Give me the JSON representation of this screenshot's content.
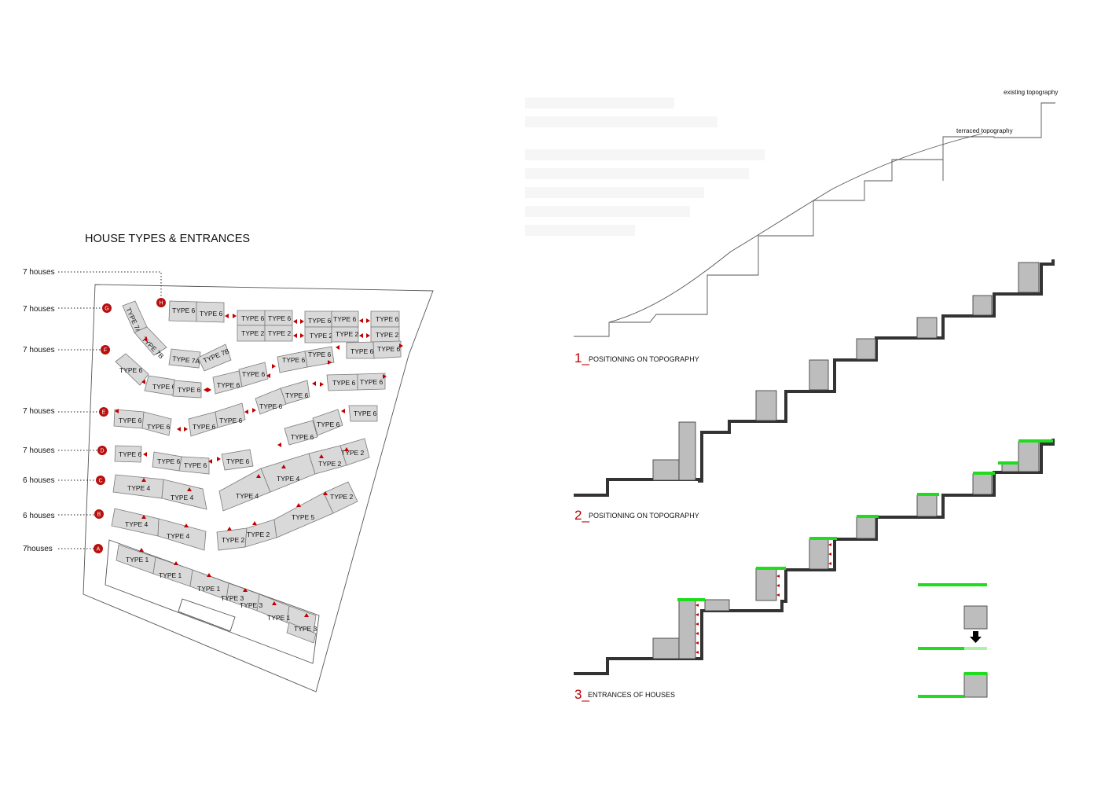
{
  "plan": {
    "title": "HOUSE TYPES & ENTRANCES",
    "row_counts": [
      {
        "label": "7 houses",
        "marker": "H"
      },
      {
        "label": "7 houses",
        "marker": "G"
      },
      {
        "label": "7 houses",
        "marker": "F"
      },
      {
        "label": "7 houses",
        "marker": "E"
      },
      {
        "label": "7 houses",
        "marker": "D"
      },
      {
        "label": "6 houses",
        "marker": "C"
      },
      {
        "label": "6 houses",
        "marker": "B"
      },
      {
        "label": "7houses",
        "marker": "A"
      }
    ],
    "unit_labels": {
      "type1": "TYPE 1",
      "type2": "TYPE 2",
      "type3": "TYPE 3",
      "type4": "TYPE 4",
      "type5": "TYPE 5",
      "type6": "TYPE 6",
      "type7a": "TYPE 7A",
      "type7b": "TYPE 7B"
    },
    "entrance_color": "#c00000",
    "marker_color": "#b80f0f"
  },
  "sections": {
    "existing_label": "existing topography",
    "terraced_label": "terraced topography",
    "items": [
      {
        "number": "1_",
        "label": "POSITIONING ON TOPOGRAPHY"
      },
      {
        "number": "2_",
        "label": "POSITIONING ON TOPOGRAPHY"
      },
      {
        "number": "3_",
        "label": "ENTRANCES OF HOUSES"
      }
    ],
    "number_color": "#c00000",
    "roof_color": "#1fdc1f"
  }
}
